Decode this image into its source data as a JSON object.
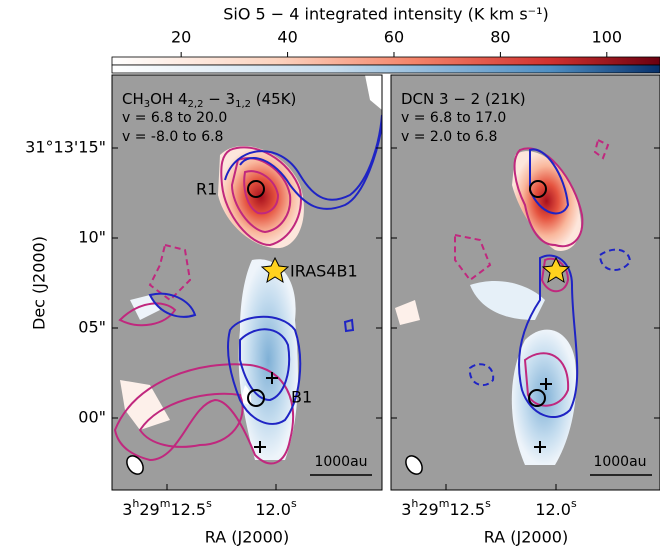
{
  "chart_data": {
    "type": "map",
    "colorbar": {
      "label": "SiO 5 − 4 integrated intensity (K km s⁻¹)",
      "lim": [
        7,
        110
      ],
      "ticks": [
        20,
        40,
        60,
        80,
        100
      ]
    },
    "ylabel": "Dec (J2000)",
    "yticks": [
      "31°13'15\"",
      "10\"",
      "05\"",
      "00\""
    ],
    "xlabel": "RA (J2000)",
    "xticks": [
      "3h29m12.5s",
      "12.0s"
    ],
    "panels": [
      {
        "title": [
          "CH",
          "3",
          "OH 4",
          "2,2",
          " − 3",
          "1,2",
          " (45K)"
        ],
        "red_range": "v = 6.8 to 20.0",
        "blue_range": "v = -8.0 to 6.8",
        "labels": [
          "R1",
          "IRAS4B1",
          "B1"
        ],
        "scale": "1000au"
      },
      {
        "title": [
          "DCN 3 − 2 (21K)"
        ],
        "red_range": "v = 6.8 to 17.0",
        "blue_range": "v = 2.0 to 6.8",
        "labels": [],
        "scale": "1000au"
      }
    ]
  }
}
